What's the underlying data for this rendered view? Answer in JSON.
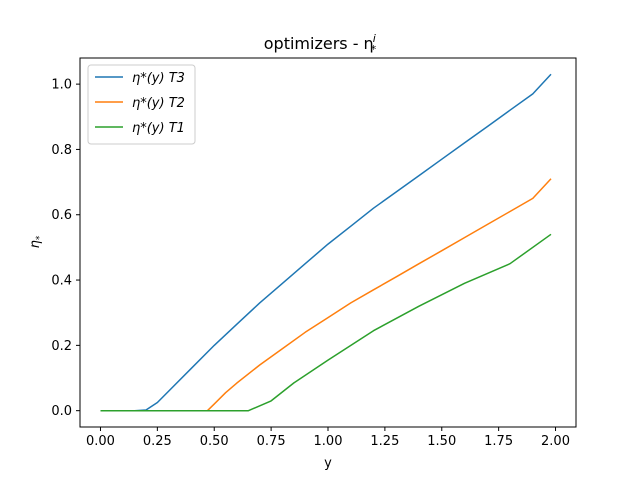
{
  "chart_data": {
    "type": "line",
    "title": "optimizers - η",
    "title_sub": "*",
    "title_sup": "i",
    "xlabel": "y",
    "ylabel": "η",
    "ylabel_sub": "*",
    "xlim": [
      -0.09,
      2.09
    ],
    "ylim": [
      -0.05,
      1.08
    ],
    "xticks": [
      0.0,
      0.25,
      0.5,
      0.75,
      1.0,
      1.25,
      1.5,
      1.75,
      2.0
    ],
    "xtick_labels": [
      "0.00",
      "0.25",
      "0.50",
      "0.75",
      "1.00",
      "1.25",
      "1.50",
      "1.75",
      "2.00"
    ],
    "yticks": [
      0.0,
      0.2,
      0.4,
      0.6,
      0.8,
      1.0
    ],
    "ytick_labels": [
      "0.0",
      "0.2",
      "0.4",
      "0.6",
      "0.8",
      "1.0"
    ],
    "grid": false,
    "legend_position": "top-left",
    "series": [
      {
        "name": "η*(y) T3",
        "color": "#1f77b4",
        "x": [
          0.0,
          0.05,
          0.1,
          0.15,
          0.2,
          0.25,
          0.3,
          0.4,
          0.5,
          0.6,
          0.7,
          0.8,
          0.9,
          1.0,
          1.1,
          1.2,
          1.3,
          1.4,
          1.5,
          1.6,
          1.7,
          1.8,
          1.9,
          1.98
        ],
        "y": [
          0.0,
          0.0,
          0.0,
          0.0,
          0.002,
          0.025,
          0.06,
          0.13,
          0.2,
          0.265,
          0.33,
          0.39,
          0.45,
          0.51,
          0.565,
          0.62,
          0.67,
          0.72,
          0.77,
          0.82,
          0.87,
          0.92,
          0.97,
          1.03
        ]
      },
      {
        "name": "η*(y) T2",
        "color": "#ff7f0e",
        "x": [
          0.0,
          0.1,
          0.2,
          0.3,
          0.4,
          0.47,
          0.5,
          0.55,
          0.6,
          0.7,
          0.8,
          0.9,
          1.0,
          1.1,
          1.2,
          1.3,
          1.4,
          1.5,
          1.6,
          1.7,
          1.8,
          1.9,
          1.98
        ],
        "y": [
          0.0,
          0.0,
          0.0,
          0.0,
          0.0,
          0.0,
          0.02,
          0.055,
          0.085,
          0.14,
          0.19,
          0.24,
          0.285,
          0.33,
          0.37,
          0.41,
          0.45,
          0.49,
          0.53,
          0.57,
          0.61,
          0.65,
          0.71
        ]
      },
      {
        "name": "η*(y) T1",
        "color": "#2ca02c",
        "x": [
          0.0,
          0.1,
          0.2,
          0.3,
          0.4,
          0.5,
          0.6,
          0.65,
          0.75,
          0.85,
          1.0,
          1.2,
          1.4,
          1.6,
          1.8,
          1.98
        ],
        "y": [
          0.0,
          0.0,
          0.0,
          0.0,
          0.0,
          0.0,
          0.0,
          0.0,
          0.03,
          0.085,
          0.155,
          0.245,
          0.32,
          0.39,
          0.45,
          0.54
        ]
      }
    ]
  }
}
